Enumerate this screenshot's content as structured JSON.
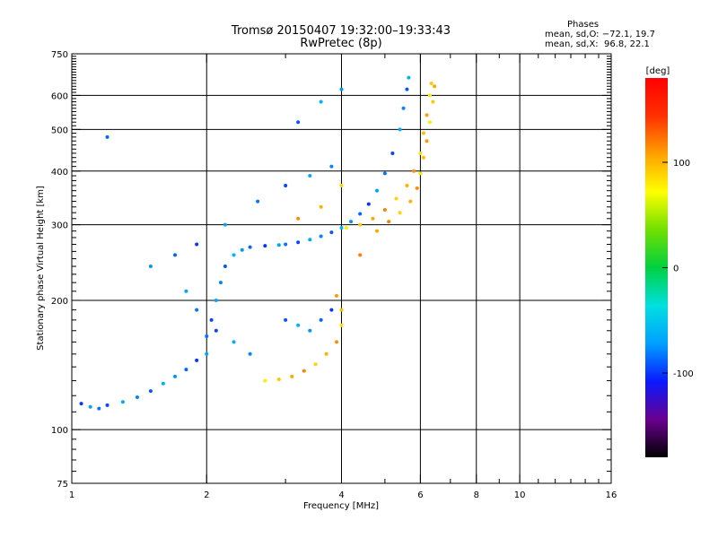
{
  "title": {
    "line1": "Tromsø 20150407 19:32:00–19:33:43",
    "line2": "RwPretec (8p)"
  },
  "stats": {
    "heading": "Phases",
    "line1": "mean, sd,O: −72.1, 19.7",
    "line2": "mean, sd,X:  96.8, 22.1"
  },
  "chart_data": {
    "type": "scatter",
    "title": "Tromsø 20150407 19:32:00–19:33:43",
    "subtitle": "RwPretec (8p)",
    "xlabel": "Frequency [MHz]",
    "ylabel": "Stationary phase Virtual Height [km]",
    "x_scale": "log",
    "y_scale": "log",
    "xlim": [
      1,
      16
    ],
    "ylim": [
      75,
      750
    ],
    "x_ticks": [
      1,
      2,
      4,
      6,
      8,
      10,
      16
    ],
    "x_ticks_major_grid": [
      2,
      4,
      6,
      8,
      10
    ],
    "y_ticks": [
      75,
      100,
      200,
      300,
      400,
      500,
      600,
      750
    ],
    "y_ticks_major_grid": [
      100,
      200,
      300,
      400,
      500,
      600
    ],
    "grid": true,
    "colorbar": {
      "label": "[deg]",
      "range": [
        -180,
        180
      ],
      "ticks": [
        100,
        0,
        -100
      ],
      "colormap": "rainbow",
      "stops": [
        "#000000",
        "#6a0090",
        "#0a1aff",
        "#00a0ff",
        "#00e0e0",
        "#00d040",
        "#70e000",
        "#ffff00",
        "#ffa000",
        "#ff3000",
        "#ff0000"
      ]
    },
    "series": [
      {
        "name": "O",
        "points": [
          [
            1.05,
            115
          ],
          [
            1.1,
            113
          ],
          [
            1.15,
            112
          ],
          [
            1.2,
            114
          ],
          [
            1.3,
            116
          ],
          [
            1.4,
            119
          ],
          [
            1.5,
            123
          ],
          [
            1.6,
            128
          ],
          [
            1.7,
            133
          ],
          [
            1.8,
            138
          ],
          [
            1.9,
            145
          ],
          [
            2.0,
            150
          ],
          [
            2.0,
            165
          ],
          [
            2.05,
            180
          ],
          [
            2.1,
            200
          ],
          [
            2.15,
            220
          ],
          [
            2.2,
            240
          ],
          [
            2.3,
            255
          ],
          [
            2.4,
            262
          ],
          [
            2.5,
            266
          ],
          [
            2.7,
            268
          ],
          [
            2.9,
            269
          ],
          [
            3.0,
            270
          ],
          [
            3.2,
            273
          ],
          [
            3.4,
            277
          ],
          [
            3.6,
            282
          ],
          [
            3.8,
            288
          ],
          [
            4.0,
            295
          ],
          [
            4.2,
            305
          ],
          [
            4.4,
            318
          ],
          [
            4.6,
            335
          ],
          [
            4.8,
            360
          ],
          [
            5.0,
            395
          ],
          [
            5.2,
            440
          ],
          [
            5.4,
            500
          ],
          [
            5.5,
            560
          ],
          [
            5.6,
            620
          ],
          [
            5.65,
            660
          ],
          [
            1.5,
            240
          ],
          [
            1.7,
            255
          ],
          [
            1.9,
            270
          ],
          [
            2.2,
            300
          ],
          [
            2.6,
            340
          ],
          [
            3.0,
            370
          ],
          [
            3.4,
            390
          ],
          [
            3.8,
            410
          ],
          [
            3.0,
            180
          ],
          [
            3.2,
            175
          ],
          [
            3.4,
            170
          ],
          [
            3.6,
            180
          ],
          [
            3.8,
            190
          ],
          [
            1.8,
            210
          ],
          [
            1.9,
            190
          ],
          [
            2.1,
            170
          ],
          [
            2.3,
            160
          ],
          [
            2.5,
            150
          ],
          [
            3.2,
            520
          ],
          [
            3.6,
            580
          ],
          [
            4.0,
            620
          ],
          [
            1.2,
            480
          ]
        ]
      },
      {
        "name": "X",
        "points": [
          [
            2.7,
            130
          ],
          [
            2.9,
            131
          ],
          [
            3.1,
            133
          ],
          [
            3.3,
            137
          ],
          [
            3.5,
            142
          ],
          [
            3.7,
            150
          ],
          [
            3.9,
            160
          ],
          [
            4.0,
            175
          ],
          [
            4.0,
            190
          ],
          [
            3.9,
            205
          ],
          [
            4.1,
            295
          ],
          [
            4.4,
            300
          ],
          [
            4.7,
            310
          ],
          [
            5.0,
            325
          ],
          [
            5.3,
            345
          ],
          [
            5.6,
            370
          ],
          [
            5.8,
            400
          ],
          [
            6.0,
            440
          ],
          [
            6.1,
            490
          ],
          [
            6.2,
            540
          ],
          [
            6.3,
            600
          ],
          [
            6.35,
            640
          ],
          [
            4.8,
            290
          ],
          [
            5.1,
            305
          ],
          [
            5.4,
            320
          ],
          [
            5.7,
            340
          ],
          [
            5.9,
            365
          ],
          [
            6.0,
            395
          ],
          [
            6.1,
            430
          ],
          [
            6.2,
            470
          ],
          [
            6.3,
            520
          ],
          [
            6.4,
            580
          ],
          [
            6.45,
            630
          ],
          [
            4.4,
            255
          ],
          [
            4.0,
            370
          ],
          [
            3.6,
            330
          ],
          [
            3.2,
            310
          ]
        ]
      }
    ]
  }
}
